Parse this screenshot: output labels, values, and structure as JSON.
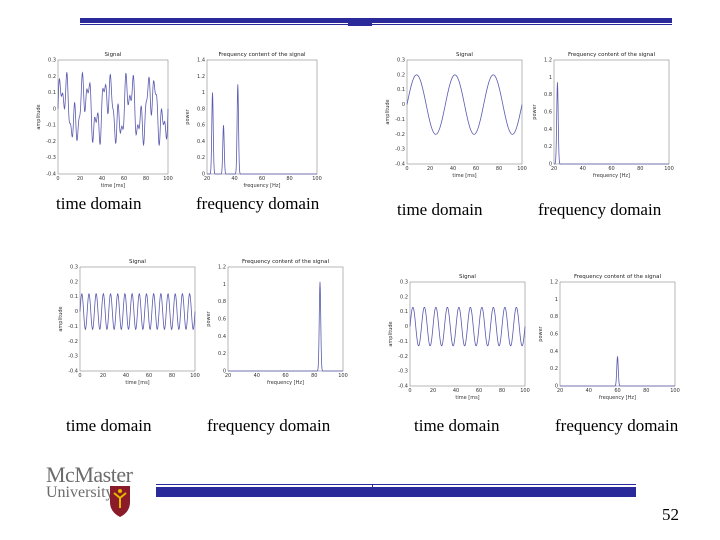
{
  "slide": {
    "captions": {
      "time": "time domain",
      "freq": "frequency domain"
    },
    "logo": {
      "line1": "McMaster",
      "line2": "University",
      "alt": "McMaster University crest"
    },
    "page_number": "52"
  },
  "colors": {
    "accent": "#2a2a9a",
    "plot_line": "#5a5ab0",
    "logo_gray": "#6b6b6b",
    "crest_red": "#8a1c2a"
  },
  "chart_data": [
    {
      "type": "line",
      "title": "Signal",
      "xlabel": "time [ms]",
      "ylabel": "amplitude",
      "xlim": [
        0,
        100
      ],
      "ylim": [
        -0.4,
        0.3
      ],
      "xticks": [
        "0",
        "20",
        "40",
        "60",
        "80",
        "100"
      ],
      "yticks": [
        "0.3",
        "0.2",
        "0.1",
        "0",
        "-0.1",
        "-0.2",
        "-0.3",
        "-0.4"
      ],
      "signal": {
        "kind": "sum",
        "components": [
          {
            "f": 0.05,
            "a": 0.12
          },
          {
            "f": 0.15,
            "a": 0.1
          },
          {
            "f": 0.28,
            "a": 0.06
          }
        ]
      }
    },
    {
      "type": "line",
      "title": "Frequency content of the signal",
      "xlabel": "frequency [Hz]",
      "ylabel": "power",
      "xlim": [
        0,
        100
      ],
      "ylim": [
        0,
        1.4
      ],
      "xticks": [
        "20",
        "40",
        "60",
        "80",
        "100"
      ],
      "yticks": [
        "1.4",
        "1.2",
        "1",
        "0.8",
        "0.6",
        "0.4",
        "0.2",
        "0"
      ],
      "peaks": [
        {
          "x": 5,
          "y": 1.0
        },
        {
          "x": 15,
          "y": 0.6
        },
        {
          "x": 28,
          "y": 1.1
        }
      ]
    },
    {
      "type": "line",
      "title": "Signal",
      "xlabel": "time [ms]",
      "ylabel": "amplitude",
      "xlim": [
        0,
        100
      ],
      "ylim": [
        -0.4,
        0.3
      ],
      "xticks": [
        "0",
        "20",
        "40",
        "60",
        "80",
        "100"
      ],
      "yticks": [
        "0.3",
        "0.2",
        "0.1",
        "0",
        "-0.1",
        "-0.2",
        "-0.3",
        "-0.4"
      ],
      "signal": {
        "kind": "sum",
        "components": [
          {
            "f": 0.03,
            "a": 0.2
          }
        ]
      }
    },
    {
      "type": "line",
      "title": "Frequency content of the signal",
      "xlabel": "frequency [Hz]",
      "ylabel": "power",
      "xlim": [
        0,
        100
      ],
      "ylim": [
        0,
        1.4
      ],
      "xticks": [
        "20",
        "40",
        "60",
        "80",
        "100"
      ],
      "yticks": [
        "1.2",
        "1",
        "0.8",
        "0.6",
        "0.4",
        "0.2",
        "0"
      ],
      "peaks": [
        {
          "x": 3,
          "y": 1.1
        }
      ]
    },
    {
      "type": "line",
      "title": "Signal",
      "xlabel": "time [ms]",
      "ylabel": "amplitude",
      "xlim": [
        0,
        100
      ],
      "ylim": [
        -0.4,
        0.3
      ],
      "xticks": [
        "0",
        "20",
        "40",
        "60",
        "80",
        "100"
      ],
      "yticks": [
        "0.3",
        "0.2",
        "0.1",
        "0",
        "-0.1",
        "-0.2",
        "-0.3",
        "-0.4"
      ],
      "signal": {
        "kind": "sum",
        "components": [
          {
            "f": 0.16,
            "a": 0.12
          }
        ]
      }
    },
    {
      "type": "line",
      "title": "Frequency content of the signal",
      "xlabel": "frequency [Hz]",
      "ylabel": "power",
      "xlim": [
        0,
        100
      ],
      "ylim": [
        0,
        1.4
      ],
      "xticks": [
        "20",
        "40",
        "60",
        "80",
        "100"
      ],
      "yticks": [
        "1.2",
        "1",
        "0.8",
        "0.6",
        "0.4",
        "0.2",
        "0"
      ],
      "peaks": [
        {
          "x": 80,
          "y": 1.2
        }
      ]
    },
    {
      "type": "line",
      "title": "Signal",
      "xlabel": "time [ms]",
      "ylabel": "amplitude",
      "xlim": [
        0,
        100
      ],
      "ylim": [
        -0.4,
        0.3
      ],
      "xticks": [
        "0",
        "20",
        "40",
        "60",
        "80",
        "100"
      ],
      "yticks": [
        "0.3",
        "0.2",
        "0.1",
        "0",
        "-0.1",
        "-0.2",
        "-0.3",
        "-0.4"
      ],
      "signal": {
        "kind": "sum",
        "components": [
          {
            "f": 0.1,
            "a": 0.13
          }
        ]
      }
    },
    {
      "type": "line",
      "title": "Frequency content of the signal",
      "xlabel": "frequency [Hz]",
      "ylabel": "power",
      "xlim": [
        0,
        100
      ],
      "ylim": [
        0,
        1.4
      ],
      "xticks": [
        "20",
        "40",
        "60",
        "80",
        "100"
      ],
      "yticks": [
        "1.2",
        "1",
        "0.8",
        "0.6",
        "0.4",
        "0.2",
        "0"
      ],
      "peaks": [
        {
          "x": 50,
          "y": 0.4
        }
      ]
    }
  ]
}
